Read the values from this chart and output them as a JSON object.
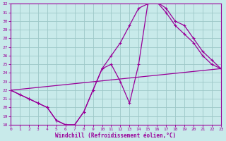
{
  "xlabel": "Windchill (Refroidissement éolien,°C)",
  "bg_color": "#c8eaea",
  "grid_color": "#9dc8c8",
  "line_color": "#990099",
  "xlim": [
    0,
    23
  ],
  "ylim": [
    18,
    32
  ],
  "xticks": [
    0,
    1,
    2,
    3,
    4,
    5,
    6,
    7,
    8,
    9,
    10,
    11,
    12,
    13,
    14,
    15,
    16,
    17,
    18,
    19,
    20,
    21,
    22,
    23
  ],
  "yticks": [
    18,
    19,
    20,
    21,
    22,
    23,
    24,
    25,
    26,
    27,
    28,
    29,
    30,
    31,
    32
  ],
  "curve1_x": [
    0,
    1,
    2,
    3,
    4,
    5,
    6,
    7,
    8,
    9,
    10,
    11,
    12,
    13,
    14,
    15,
    16,
    17,
    18,
    19,
    20,
    21,
    22,
    23
  ],
  "curve1_y": [
    22.0,
    21.5,
    21.0,
    20.5,
    20.0,
    18.5,
    18.0,
    18.0,
    19.5,
    22.0,
    24.5,
    25.0,
    23.0,
    20.5,
    25.0,
    32.0,
    32.2,
    31.0,
    29.5,
    28.5,
    27.5,
    26.0,
    25.0,
    24.5
  ],
  "curve2_x": [
    0,
    1,
    2,
    3,
    4,
    5,
    6,
    7,
    8,
    9,
    10,
    11,
    12,
    13,
    14,
    15,
    16,
    17,
    18,
    19,
    20,
    21,
    22,
    23
  ],
  "curve2_y": [
    22.0,
    21.5,
    21.0,
    20.5,
    20.0,
    18.5,
    18.0,
    18.0,
    19.5,
    22.0,
    24.5,
    26.0,
    27.5,
    29.5,
    31.5,
    32.0,
    32.2,
    31.5,
    30.0,
    29.5,
    28.0,
    26.5,
    25.5,
    24.5
  ],
  "curve3_x": [
    0,
    23
  ],
  "curve3_y": [
    22.0,
    24.5
  ]
}
